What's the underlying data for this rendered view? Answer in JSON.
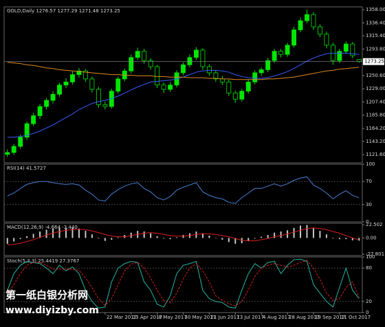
{
  "chart_data": [
    {
      "type": "candlestick",
      "title": "GOLD,Daily 1276.57 1277.29 1271.48 1273.25",
      "categories": [
        null,
        null,
        null,
        null,
        null,
        null,
        null,
        null,
        null,
        null,
        null,
        null,
        null,
        null,
        null,
        "22 Mar 2017",
        null,
        null,
        null,
        "13 Apr 2017",
        null,
        null,
        null,
        "8 May 2017",
        null,
        null,
        null,
        "30 May 2017",
        null,
        null,
        null,
        "21 Jun 2017",
        null,
        null,
        null,
        "13 Jul 2017",
        null,
        null,
        null,
        "4 Aug 2017",
        null,
        null,
        null,
        "28 Aug 2017",
        null,
        null,
        null,
        "19 Sep 2017",
        null,
        null,
        null,
        "11 Oct 2017",
        null,
        null,
        null
      ],
      "open": [
        1122,
        1125,
        1135,
        1150,
        1172,
        1185,
        1200,
        1210,
        1220,
        1235,
        1240,
        1252,
        1258,
        1245,
        1228,
        1203,
        1200,
        1225,
        1245,
        1258,
        1280,
        1290,
        1275,
        1265,
        1235,
        1228,
        1235,
        1255,
        1268,
        1280,
        1292,
        1265,
        1255,
        1245,
        1240,
        1222,
        1212,
        1225,
        1240,
        1255,
        1260,
        1275,
        1290,
        1285,
        1300,
        1325,
        1340,
        1350,
        1330,
        1318,
        1300,
        1275,
        1290,
        1302,
        1276.57
      ],
      "high": [
        1130,
        1139,
        1154,
        1176,
        1190,
        1204,
        1214,
        1225,
        1239,
        1246,
        1257,
        1263,
        1261,
        1249,
        1232,
        1208,
        1229,
        1249,
        1262,
        1285,
        1296,
        1294,
        1279,
        1268,
        1239,
        1240,
        1259,
        1272,
        1285,
        1297,
        1295,
        1269,
        1259,
        1250,
        1244,
        1226,
        1229,
        1244,
        1259,
        1264,
        1279,
        1294,
        1294,
        1304,
        1330,
        1345,
        1358,
        1354,
        1334,
        1322,
        1304,
        1294,
        1306,
        1305,
        1277.29
      ],
      "low": [
        1118,
        1121,
        1131,
        1146,
        1168,
        1180,
        1195,
        1205,
        1216,
        1230,
        1236,
        1247,
        1240,
        1223,
        1198,
        1195,
        1197,
        1221,
        1241,
        1254,
        1276,
        1270,
        1260,
        1230,
        1222,
        1224,
        1231,
        1251,
        1264,
        1276,
        1260,
        1250,
        1240,
        1235,
        1217,
        1206,
        1208,
        1221,
        1236,
        1250,
        1256,
        1271,
        1280,
        1281,
        1296,
        1321,
        1336,
        1325,
        1313,
        1295,
        1268,
        1271,
        1286,
        1279,
        1271.48
      ],
      "close": [
        1125,
        1135,
        1150,
        1172,
        1185,
        1200,
        1210,
        1220,
        1235,
        1240,
        1252,
        1258,
        1245,
        1228,
        1203,
        1200,
        1225,
        1245,
        1258,
        1280,
        1290,
        1275,
        1265,
        1235,
        1228,
        1235,
        1255,
        1268,
        1280,
        1292,
        1265,
        1255,
        1245,
        1240,
        1222,
        1212,
        1225,
        1240,
        1255,
        1260,
        1275,
        1290,
        1285,
        1300,
        1325,
        1340,
        1350,
        1330,
        1318,
        1300,
        1275,
        1290,
        1302,
        1283,
        1273.25
      ],
      "up_color": "#00e600",
      "down_color": "#000000",
      "series": [
        {
          "color": "#3a5cff",
          "style": "line",
          "values": [
            1150,
            1150,
            1151,
            1153,
            1156,
            1160,
            1165,
            1170,
            1176,
            1182,
            1188,
            1195,
            1200,
            1205,
            1208,
            1210,
            1213,
            1217,
            1222,
            1227,
            1232,
            1236,
            1240,
            1241,
            1242,
            1243,
            1245,
            1248,
            1252,
            1256,
            1258,
            1259,
            1259,
            1258,
            1256,
            1252,
            1249,
            1247,
            1246,
            1246,
            1247,
            1250,
            1253,
            1257,
            1262,
            1268,
            1274,
            1279,
            1283,
            1286,
            1287,
            1287,
            1287,
            1286,
            1285
          ]
        },
        {
          "color": "#e08a1e",
          "style": "line",
          "values": [
            1272,
            1271,
            1270,
            1268,
            1267,
            1265,
            1263,
            1262,
            1260,
            1259,
            1258,
            1257,
            1256,
            1255,
            1254,
            1253,
            1252,
            1252,
            1251,
            1251,
            1250,
            1250,
            1250,
            1249,
            1249,
            1248,
            1248,
            1248,
            1247,
            1247,
            1247,
            1246,
            1246,
            1245,
            1245,
            1244,
            1244,
            1244,
            1244,
            1244,
            1245,
            1245,
            1246,
            1247,
            1248,
            1250,
            1252,
            1254,
            1256,
            1258,
            1259,
            1261,
            1262,
            1263,
            1264
          ]
        }
      ],
      "last_price": 1273.25,
      "ylim": [
        1108.2,
        1362.5
      ],
      "yticks": [
        {
          "value": 1121.6,
          "label": "1121.60"
        },
        {
          "value": 1143.2,
          "label": "1143.20"
        },
        {
          "value": 1164.2,
          "label": "1164.20"
        },
        {
          "value": 1185.8,
          "label": "1185.80"
        },
        {
          "value": 1207.4,
          "label": "1207.40"
        },
        {
          "value": 1229,
          "label": "1229.00"
        },
        {
          "value": 1250.6,
          "label": "1250.60"
        },
        {
          "value": 1293.8,
          "label": "1293.80"
        },
        {
          "value": 1315.4,
          "label": "1315.40"
        },
        {
          "value": 1336.4,
          "label": "1336.40"
        },
        {
          "value": 1358,
          "label": "1358.00"
        }
      ],
      "grid": false
    },
    {
      "type": "line",
      "title": "RSI(14) 41.5727",
      "series": [
        {
          "color": "#4a7fd4",
          "style": "line",
          "values": [
            45,
            50,
            58,
            65,
            68,
            70,
            70,
            68,
            66,
            65,
            66,
            64,
            55,
            48,
            38,
            36,
            48,
            56,
            62,
            66,
            68,
            58,
            52,
            42,
            38,
            44,
            55,
            60,
            64,
            68,
            52,
            46,
            42,
            40,
            34,
            32,
            42,
            50,
            58,
            58,
            62,
            66,
            62,
            66,
            72,
            76,
            78,
            64,
            58,
            50,
            40,
            48,
            54,
            46,
            41.5727
          ]
        }
      ],
      "ylim": [
        0,
        100
      ],
      "yticks": [
        0,
        30,
        70,
        100
      ],
      "grid": true
    },
    {
      "type": "bar",
      "title": "MACD(12,26,9) -4.664 -3.440",
      "series": [
        {
          "color": "#c8c8c8",
          "style": "bar",
          "values": [
            -10,
            -6,
            -2,
            3,
            7,
            11,
            14,
            16,
            17,
            17,
            17,
            16,
            12,
            6,
            -1,
            -5,
            -3,
            1,
            5,
            9,
            12,
            11,
            8,
            3,
            -1,
            -2,
            1,
            5,
            8,
            11,
            8,
            4,
            0,
            -3,
            -7,
            -10,
            -9,
            -5,
            -1,
            2,
            5,
            9,
            11,
            13,
            17,
            21,
            22,
            17,
            12,
            6,
            -1,
            -2,
            -2,
            -4,
            -4.664
          ]
        },
        {
          "color": "#e02020",
          "style": "line",
          "values": [
            -12,
            -11,
            -9,
            -6,
            -3,
            1,
            5,
            8,
            11,
            13,
            14,
            15,
            14,
            12,
            9,
            6,
            3,
            2,
            2,
            4,
            6,
            8,
            9,
            8,
            6,
            4,
            3,
            3,
            4,
            6,
            7,
            7,
            6,
            4,
            2,
            -1,
            -4,
            -5,
            -5,
            -3,
            -1,
            2,
            4,
            7,
            10,
            13,
            16,
            17,
            16,
            14,
            11,
            8,
            4,
            0,
            -3.44
          ]
        }
      ],
      "ylim": [
        -30,
        25
      ],
      "yticks": [
        {
          "value": -27.801,
          "label": "-27.801"
        },
        {
          "value": 0,
          "label": "0.00"
        },
        22.502
      ],
      "grid": false
    },
    {
      "type": "line",
      "title": "Stoch(5,3,3) 25.4419 27.3767",
      "series": [
        {
          "color": "#2ab5a5",
          "style": "line",
          "values": [
            40,
            70,
            85,
            92,
            90,
            88,
            80,
            70,
            85,
            75,
            82,
            70,
            40,
            20,
            8,
            10,
            55,
            80,
            88,
            92,
            90,
            55,
            40,
            15,
            10,
            30,
            70,
            85,
            88,
            92,
            40,
            25,
            20,
            18,
            10,
            8,
            40,
            70,
            88,
            80,
            90,
            92,
            70,
            85,
            95,
            96,
            92,
            50,
            35,
            20,
            10,
            45,
            80,
            40,
            25.4419
          ]
        },
        {
          "color": "#e02020",
          "style": "dashed",
          "values": [
            35,
            50,
            70,
            85,
            90,
            90,
            85,
            78,
            78,
            78,
            78,
            76,
            62,
            45,
            25,
            13,
            25,
            50,
            75,
            87,
            90,
            80,
            62,
            40,
            22,
            18,
            35,
            60,
            80,
            88,
            75,
            55,
            30,
            22,
            16,
            12,
            20,
            40,
            65,
            80,
            85,
            88,
            85,
            82,
            85,
            90,
            94,
            80,
            60,
            35,
            22,
            25,
            45,
            55,
            27.3767
          ]
        }
      ],
      "ylim": [
        0,
        100
      ],
      "yticks": [
        0,
        20,
        80,
        100
      ],
      "grid": true
    }
  ],
  "watermark": {
    "line1": "第一纸白银分析网",
    "line2": "www.diyizby.com"
  }
}
